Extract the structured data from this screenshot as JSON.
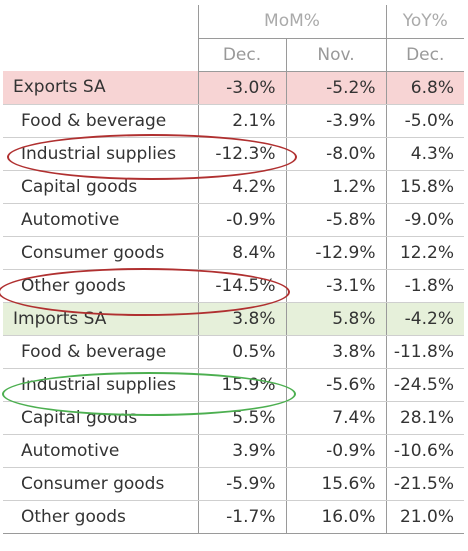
{
  "header": {
    "group_mom": "MoM%",
    "group_yoy": "YoY%",
    "col_mom_dec": "Dec.",
    "col_mom_nov": "Nov.",
    "col_yoy_dec": "Dec."
  },
  "rows": [
    {
      "label": "Exports SA",
      "mom_dec": "-3.0%",
      "mom_nov": "-5.2%",
      "yoy_dec": "6.8%"
    },
    {
      "label": "Food & beverage",
      "mom_dec": "2.1%",
      "mom_nov": "-3.9%",
      "yoy_dec": "-5.0%"
    },
    {
      "label": "Industrial supplies",
      "mom_dec": "-12.3%",
      "mom_nov": "-8.0%",
      "yoy_dec": "4.3%"
    },
    {
      "label": "Capital goods",
      "mom_dec": "4.2%",
      "mom_nov": "1.2%",
      "yoy_dec": "15.8%"
    },
    {
      "label": "Automotive",
      "mom_dec": "-0.9%",
      "mom_nov": "-5.8%",
      "yoy_dec": "-9.0%"
    },
    {
      "label": "Consumer goods",
      "mom_dec": "8.4%",
      "mom_nov": "-12.9%",
      "yoy_dec": "12.2%"
    },
    {
      "label": "Other goods",
      "mom_dec": "-14.5%",
      "mom_nov": "-3.1%",
      "yoy_dec": "-1.8%"
    },
    {
      "label": "Imports SA",
      "mom_dec": "3.8%",
      "mom_nov": "5.8%",
      "yoy_dec": "-4.2%"
    },
    {
      "label": "Food & beverage",
      "mom_dec": "0.5%",
      "mom_nov": "3.8%",
      "yoy_dec": "-11.8%"
    },
    {
      "label": "Industrial supplies",
      "mom_dec": "15.9%",
      "mom_nov": "-5.6%",
      "yoy_dec": "-24.5%"
    },
    {
      "label": "Capital goods",
      "mom_dec": "5.5%",
      "mom_nov": "7.4%",
      "yoy_dec": "28.1%"
    },
    {
      "label": "Automotive",
      "mom_dec": "3.9%",
      "mom_nov": "-0.9%",
      "yoy_dec": "-10.6%"
    },
    {
      "label": "Consumer goods",
      "mom_dec": "-5.9%",
      "mom_nov": "15.6%",
      "yoy_dec": "-21.5%"
    },
    {
      "label": "Other goods",
      "mom_dec": "-1.7%",
      "mom_nov": "16.0%",
      "yoy_dec": "21.0%"
    }
  ],
  "highlight_colors": {
    "exports_row": "#f7d4d4",
    "imports_row": "#e6f0da",
    "red_circle": "#b03030",
    "green_circle": "#4caf50"
  }
}
